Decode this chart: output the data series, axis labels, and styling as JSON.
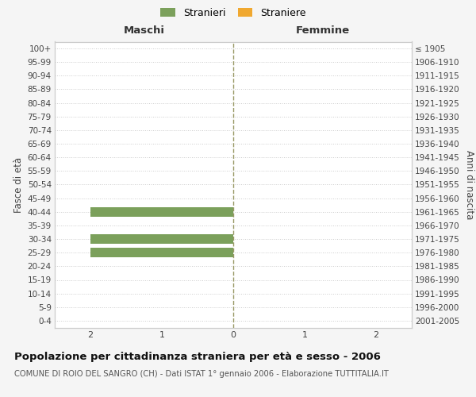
{
  "age_groups": [
    "100+",
    "95-99",
    "90-94",
    "85-89",
    "80-84",
    "75-79",
    "70-74",
    "65-69",
    "60-64",
    "55-59",
    "50-54",
    "45-49",
    "40-44",
    "35-39",
    "30-34",
    "25-29",
    "20-24",
    "15-19",
    "10-14",
    "5-9",
    "0-4"
  ],
  "birth_years": [
    "≤ 1905",
    "1906-1910",
    "1911-1915",
    "1916-1920",
    "1921-1925",
    "1926-1930",
    "1931-1935",
    "1936-1940",
    "1941-1945",
    "1946-1950",
    "1951-1955",
    "1956-1960",
    "1961-1965",
    "1966-1970",
    "1971-1975",
    "1976-1980",
    "1981-1985",
    "1986-1990",
    "1991-1995",
    "1996-2000",
    "2001-2005"
  ],
  "males_stranieri": [
    0,
    0,
    0,
    0,
    0,
    0,
    0,
    0,
    0,
    0,
    0,
    0,
    2,
    0,
    2,
    2,
    0,
    0,
    0,
    0,
    0
  ],
  "females_stranieri": [
    0,
    0,
    0,
    0,
    0,
    0,
    0,
    0,
    0,
    0,
    0,
    0,
    0,
    0,
    0,
    0,
    0,
    0,
    0,
    0,
    0
  ],
  "males_straniere": [
    0,
    0,
    0,
    0,
    0,
    0,
    0,
    0,
    0,
    0,
    0,
    0,
    0,
    0,
    0,
    0,
    0,
    0,
    0,
    0,
    0
  ],
  "females_straniere": [
    0,
    0,
    0,
    0,
    0,
    0,
    0,
    0,
    0,
    0,
    0,
    0,
    0,
    0,
    0,
    0,
    0,
    0,
    0,
    0,
    0
  ],
  "color_stranieri": "#7ba05b",
  "color_straniere": "#f0a830",
  "xlim": 2.5,
  "xlabel_left": "Maschi",
  "xlabel_right": "Femmine",
  "ylabel_left": "Fasce di età",
  "ylabel_right": "Anni di nascita",
  "legend_stranieri": "Stranieri",
  "legend_straniere": "Straniere",
  "title": "Popolazione per cittadinanza straniera per età e sesso - 2006",
  "subtitle": "COMUNE DI ROIO DEL SANGRO (CH) - Dati ISTAT 1° gennaio 2006 - Elaborazione TUTTITALIA.IT",
  "bg_color": "#f5f5f5",
  "plot_bg": "#ffffff",
  "bar_height": 0.72,
  "grid_color": "#cccccc",
  "spine_color": "#cccccc",
  "center_line_color": "#999966"
}
